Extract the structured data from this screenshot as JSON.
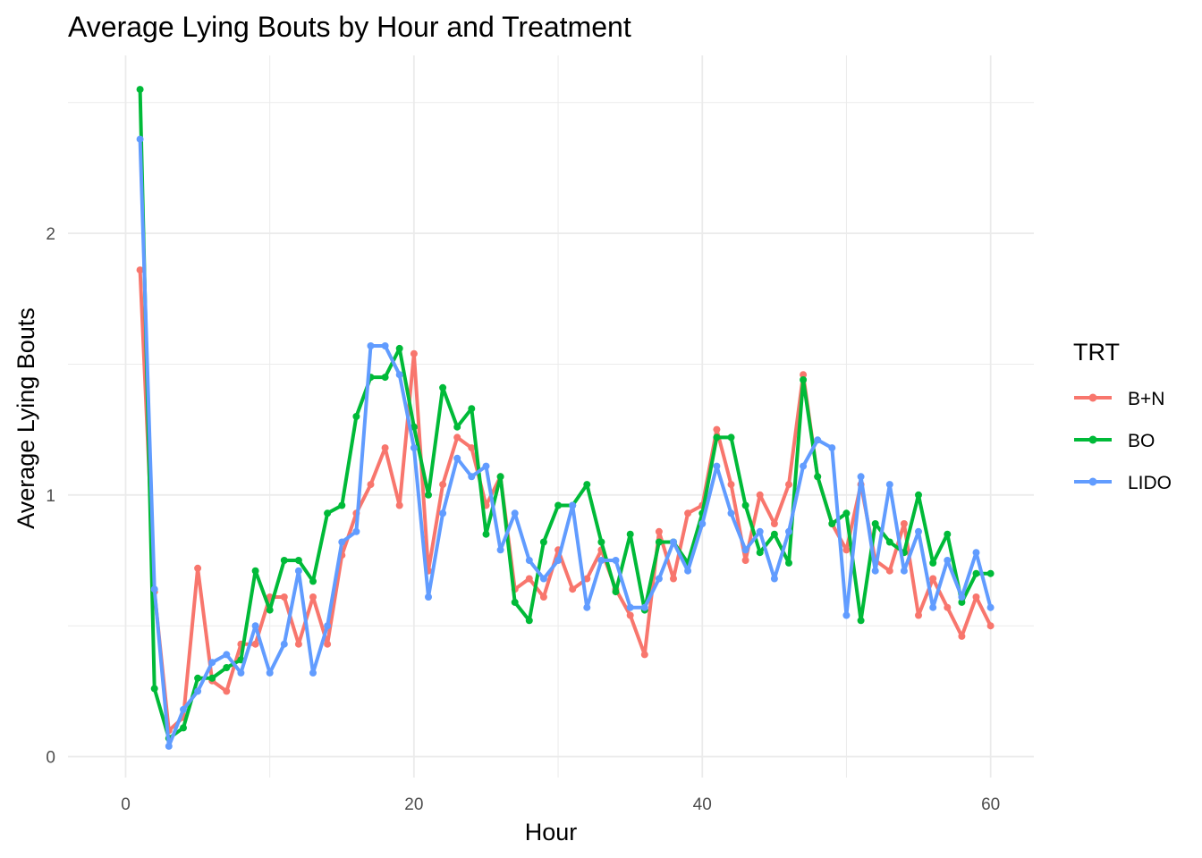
{
  "chart_data": {
    "type": "line",
    "title": "Average Lying Bouts by Hour and Treatment",
    "xlabel": "Hour",
    "ylabel": "Average Lying Bouts",
    "xlim": [
      -4,
      63
    ],
    "ylim": [
      -0.08,
      2.68
    ],
    "xticks": [
      0,
      20,
      40,
      60
    ],
    "yticks": [
      0,
      1,
      2
    ],
    "x_minor": [
      10,
      30,
      50
    ],
    "y_minor": [
      0.5,
      1.5,
      2.5
    ],
    "grid": true,
    "legend": {
      "title": "TRT",
      "position": "right"
    },
    "x": [
      1,
      2,
      3,
      4,
      5,
      6,
      7,
      8,
      9,
      10,
      11,
      12,
      13,
      14,
      15,
      16,
      17,
      18,
      19,
      20,
      21,
      22,
      23,
      24,
      25,
      26,
      27,
      28,
      29,
      30,
      31,
      32,
      33,
      34,
      35,
      36,
      37,
      38,
      39,
      40,
      41,
      42,
      43,
      44,
      45,
      46,
      47,
      48,
      49,
      50,
      51,
      52,
      53,
      54,
      55,
      56,
      57,
      58,
      59,
      60
    ],
    "series": [
      {
        "name": "B+N",
        "color": "#F8766D",
        "values": [
          1.86,
          0.63,
          0.1,
          0.15,
          0.72,
          0.29,
          0.25,
          0.43,
          0.43,
          0.61,
          0.61,
          0.43,
          0.61,
          0.43,
          0.77,
          0.93,
          1.04,
          1.18,
          0.96,
          1.54,
          0.71,
          1.04,
          1.22,
          1.18,
          0.96,
          1.07,
          0.64,
          0.68,
          0.61,
          0.79,
          0.64,
          0.68,
          0.79,
          0.64,
          0.54,
          0.39,
          0.86,
          0.68,
          0.93,
          0.96,
          1.25,
          1.04,
          0.75,
          1.0,
          0.89,
          1.04,
          1.46,
          1.07,
          0.89,
          0.79,
          1.04,
          0.75,
          0.71,
          0.89,
          0.54,
          0.68,
          0.57,
          0.46,
          0.61,
          0.5
        ]
      },
      {
        "name": "BO",
        "color": "#00BA38",
        "values": [
          2.55,
          0.26,
          0.07,
          0.11,
          0.3,
          0.3,
          0.34,
          0.37,
          0.71,
          0.56,
          0.75,
          0.75,
          0.67,
          0.93,
          0.96,
          1.3,
          1.45,
          1.45,
          1.56,
          1.26,
          1.0,
          1.41,
          1.26,
          1.33,
          0.85,
          1.07,
          0.59,
          0.52,
          0.82,
          0.96,
          0.96,
          1.04,
          0.82,
          0.63,
          0.85,
          0.56,
          0.82,
          0.82,
          0.74,
          0.93,
          1.22,
          1.22,
          0.96,
          0.78,
          0.85,
          0.74,
          1.44,
          1.07,
          0.89,
          0.93,
          0.52,
          0.89,
          0.82,
          0.78,
          1.0,
          0.74,
          0.85,
          0.59,
          0.7,
          0.7
        ]
      },
      {
        "name": "LIDO",
        "color": "#619CFF",
        "values": [
          2.36,
          0.64,
          0.04,
          0.18,
          0.25,
          0.36,
          0.39,
          0.32,
          0.5,
          0.32,
          0.43,
          0.71,
          0.32,
          0.5,
          0.82,
          0.86,
          1.57,
          1.57,
          1.46,
          1.18,
          0.61,
          0.93,
          1.14,
          1.07,
          1.11,
          0.79,
          0.93,
          0.75,
          0.68,
          0.75,
          0.96,
          0.57,
          0.75,
          0.75,
          0.57,
          0.57,
          0.68,
          0.82,
          0.71,
          0.89,
          1.11,
          0.93,
          0.79,
          0.86,
          0.68,
          0.86,
          1.11,
          1.21,
          1.18,
          0.54,
          1.07,
          0.71,
          1.04,
          0.71,
          0.86,
          0.57,
          0.75,
          0.61,
          0.78,
          0.57
        ]
      }
    ]
  }
}
